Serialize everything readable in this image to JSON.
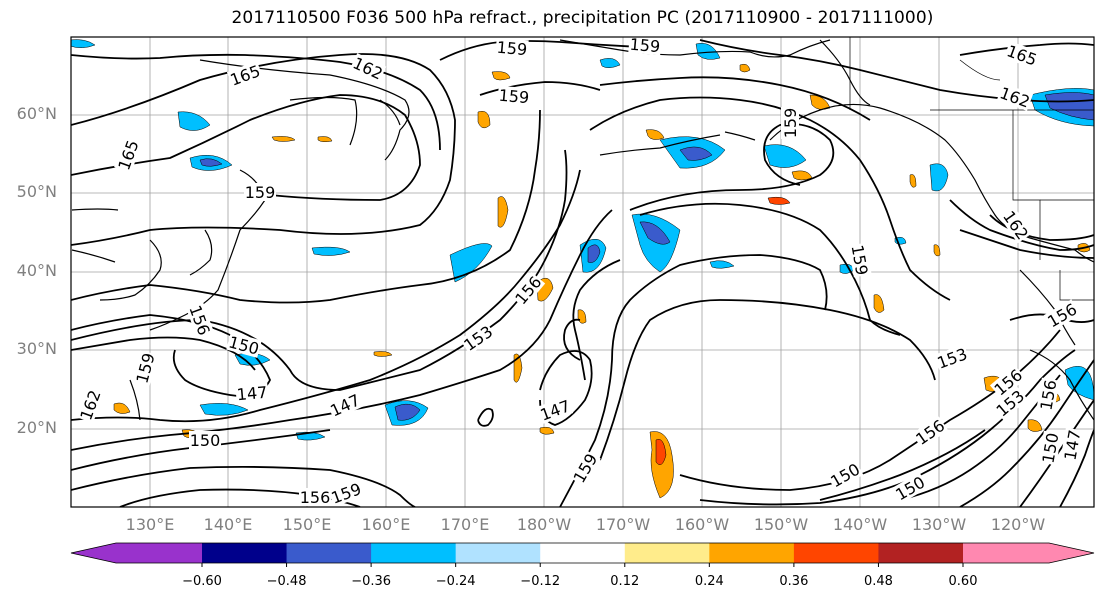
{
  "title": "2017110500 F036 500 hPa refract., precipitation PC (2017110900 - 2017111000)",
  "lat_labels": [
    "60°N",
    "50°N",
    "40°N",
    "30°N",
    "20°N"
  ],
  "lon_labels": [
    "130°E",
    "140°E",
    "150°E",
    "160°E",
    "170°E",
    "180°W",
    "170°W",
    "160°W",
    "150°W",
    "140°W",
    "130°W",
    "120°W"
  ],
  "contour_labels": [
    "165",
    "162",
    "159",
    "159",
    "165",
    "159",
    "156",
    "150",
    "159",
    "147",
    "162",
    "153",
    "156",
    "147",
    "147",
    "159",
    "156",
    "159",
    "159",
    "165",
    "162",
    "162",
    "159",
    "156",
    "153",
    "156",
    "153",
    "156",
    "150",
    "150",
    "150",
    "147",
    "159",
    "150",
    "156"
  ],
  "colorbar": {
    "ticks": [
      "−0.60",
      "−0.48",
      "−0.36",
      "−0.24",
      "−0.12",
      "0.12",
      "0.24",
      "0.36",
      "0.48",
      "0.60"
    ],
    "colors": [
      "#9932cc",
      "#00008b",
      "#3a5bcc",
      "#00bfff",
      "#b0e2ff",
      "#ffffff",
      "#ffec8b",
      "#ffa500",
      "#ff4500",
      "#b22222",
      "#ff88b0"
    ]
  }
}
